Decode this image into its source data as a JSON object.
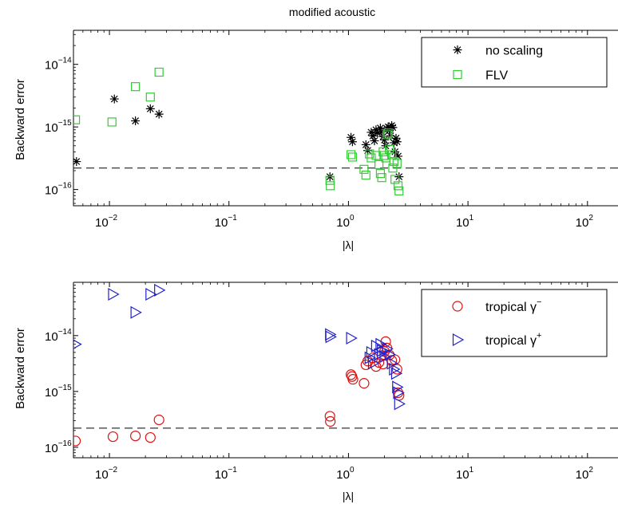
{
  "chart_data": [
    {
      "type": "scatter",
      "title": "modified acoustic",
      "xlabel": "|λ|",
      "ylabel": "Backward error",
      "x_scale": "log",
      "y_scale": "log",
      "xlim": [
        0.005,
        180
      ],
      "ylim": [
        5.5e-17,
        3.5e-14
      ],
      "x_ticks": [
        0.01,
        0.1,
        1,
        10,
        100
      ],
      "x_tick_labels": [
        {
          "base": "10",
          "exp": "−2"
        },
        {
          "base": "10",
          "exp": "−1"
        },
        {
          "base": "10",
          "exp": "0"
        },
        {
          "base": "10",
          "exp": "1"
        },
        {
          "base": "10",
          "exp": "2"
        }
      ],
      "y_ticks": [
        1e-16,
        1e-15,
        1e-14
      ],
      "y_tick_labels": [
        {
          "base": "10",
          "exp": "−16"
        },
        {
          "base": "10",
          "exp": "−15"
        },
        {
          "base": "10",
          "exp": "−14"
        }
      ],
      "reference_line": {
        "y": 2.2e-16,
        "style": "dashed"
      },
      "legend_position": "top-right",
      "grid": false,
      "series": [
        {
          "name": "no scaling",
          "marker": "asterisk",
          "color": "#000000",
          "points": [
            [
              0.0053,
              2.8e-16
            ],
            [
              0.011,
              2.8e-15
            ],
            [
              0.0165,
              1.25e-15
            ],
            [
              0.022,
              1.95e-15
            ],
            [
              0.026,
              1.6e-15
            ],
            [
              0.7,
              1.6e-16
            ],
            [
              1.05,
              6.8e-16
            ],
            [
              1.08,
              5.8e-16
            ],
            [
              1.4,
              5.2e-16
            ],
            [
              1.45,
              4.2e-16
            ],
            [
              1.55,
              8.2e-16
            ],
            [
              1.6,
              7.2e-16
            ],
            [
              1.65,
              6e-16
            ],
            [
              1.7,
              9e-16
            ],
            [
              1.75,
              8e-16
            ],
            [
              1.85,
              9.6e-16
            ],
            [
              1.9,
              8.4e-16
            ],
            [
              1.95,
              7e-16
            ],
            [
              2.0,
              6.2e-16
            ],
            [
              2.05,
              5e-16
            ],
            [
              2.1,
              9.4e-16
            ],
            [
              2.15,
              1e-15
            ],
            [
              2.2,
              8.8e-16
            ],
            [
              2.25,
              7.2e-16
            ],
            [
              2.3,
              1.05e-15
            ],
            [
              2.35,
              9.8e-16
            ],
            [
              2.4,
              5.6e-16
            ],
            [
              2.45,
              4e-16
            ],
            [
              2.5,
              6.6e-16
            ],
            [
              2.55,
              5.8e-16
            ],
            [
              2.6,
              3.4e-16
            ],
            [
              2.65,
              1.6e-16
            ]
          ]
        },
        {
          "name": "FLV",
          "marker": "square",
          "color": "#33cc33",
          "points": [
            [
              0.0052,
              1.3e-15
            ],
            [
              0.0105,
              1.2e-15
            ],
            [
              0.0165,
              4.4e-15
            ],
            [
              0.022,
              3e-15
            ],
            [
              0.026,
              7.5e-15
            ],
            [
              0.7,
              1.4e-16
            ],
            [
              0.705,
              1.15e-16
            ],
            [
              1.05,
              3.6e-16
            ],
            [
              1.08,
              3.3e-16
            ],
            [
              1.35,
              2.1e-16
            ],
            [
              1.4,
              1.7e-16
            ],
            [
              1.5,
              3.7e-16
            ],
            [
              1.55,
              3.2e-16
            ],
            [
              1.7,
              3.5e-16
            ],
            [
              1.8,
              2.5e-16
            ],
            [
              1.85,
              1.8e-16
            ],
            [
              1.9,
              1.55e-16
            ],
            [
              1.95,
              4e-16
            ],
            [
              2.0,
              3.5e-16
            ],
            [
              2.05,
              3.2e-16
            ],
            [
              2.1,
              7.5e-16
            ],
            [
              2.15,
              8e-16
            ],
            [
              2.2,
              4.4e-16
            ],
            [
              2.3,
              3.6e-16
            ],
            [
              2.35,
              2.2e-16
            ],
            [
              2.4,
              2.8e-16
            ],
            [
              2.45,
              1.45e-16
            ],
            [
              2.55,
              2.6e-16
            ],
            [
              2.6,
              1.15e-16
            ],
            [
              2.65,
              9.5e-17
            ]
          ]
        }
      ]
    },
    {
      "type": "scatter",
      "title": "",
      "xlabel": "|λ|",
      "ylabel": "Backward error",
      "x_scale": "log",
      "y_scale": "log",
      "xlim": [
        0.005,
        180
      ],
      "ylim": [
        6.5e-17,
        9e-14
      ],
      "x_ticks": [
        0.01,
        0.1,
        1,
        10,
        100
      ],
      "x_tick_labels": [
        {
          "base": "10",
          "exp": "−2"
        },
        {
          "base": "10",
          "exp": "−1"
        },
        {
          "base": "10",
          "exp": "0"
        },
        {
          "base": "10",
          "exp": "1"
        },
        {
          "base": "10",
          "exp": "2"
        }
      ],
      "y_ticks": [
        1e-16,
        1e-15,
        1e-14
      ],
      "y_tick_labels": [
        {
          "base": "10",
          "exp": "−16"
        },
        {
          "base": "10",
          "exp": "−15"
        },
        {
          "base": "10",
          "exp": "−14"
        }
      ],
      "reference_line": {
        "y": 2.2e-16,
        "style": "dashed"
      },
      "legend_position": "top-right",
      "grid": false,
      "series": [
        {
          "name": "tropical γ⁻",
          "legend_base": "tropical γ",
          "legend_sup": "−",
          "marker": "circle",
          "color": "#dd1111",
          "points": [
            [
              0.0052,
              1.3e-16
            ],
            [
              0.0107,
              1.55e-16
            ],
            [
              0.0165,
              1.6e-16
            ],
            [
              0.022,
              1.5e-16
            ],
            [
              0.026,
              3.1e-16
            ],
            [
              0.7,
              3.6e-16
            ],
            [
              0.705,
              2.9e-16
            ],
            [
              1.05,
              2e-15
            ],
            [
              1.07,
              1.85e-15
            ],
            [
              1.09,
              1.65e-15
            ],
            [
              1.35,
              1.4e-15
            ],
            [
              1.4,
              3e-15
            ],
            [
              1.45,
              3.5e-15
            ],
            [
              1.6,
              4e-15
            ],
            [
              1.7,
              2.8e-15
            ],
            [
              1.8,
              3.3e-15
            ],
            [
              1.9,
              4.4e-15
            ],
            [
              1.95,
              3.1e-15
            ],
            [
              2.0,
              5.2e-15
            ],
            [
              2.05,
              7.8e-15
            ],
            [
              2.1,
              6e-15
            ],
            [
              2.2,
              4.5e-15
            ],
            [
              2.3,
              3.6e-15
            ],
            [
              2.45,
              3.7e-15
            ],
            [
              2.55,
              2.5e-15
            ],
            [
              2.6,
              9.5e-16
            ],
            [
              2.65,
              8.5e-16
            ]
          ]
        },
        {
          "name": "tropical γ⁺",
          "legend_base": "tropical γ",
          "legend_sup": "+",
          "marker": "triangle-right",
          "color": "#2222cc",
          "points": [
            [
              0.0052,
              7e-15
            ],
            [
              0.0107,
              5.5e-14
            ],
            [
              0.0165,
              2.6e-14
            ],
            [
              0.022,
              5.5e-14
            ],
            [
              0.026,
              6.5e-14
            ],
            [
              0.7,
              1.05e-14
            ],
            [
              0.705,
              9.5e-15
            ],
            [
              1.05,
              9e-15
            ],
            [
              1.5,
              4e-15
            ],
            [
              1.55,
              5e-15
            ],
            [
              1.6,
              3.2e-15
            ],
            [
              1.7,
              6.5e-15
            ],
            [
              1.8,
              4.6e-15
            ],
            [
              1.85,
              7e-15
            ],
            [
              1.9,
              5.4e-15
            ],
            [
              2.0,
              4.2e-15
            ],
            [
              2.1,
              5.8e-15
            ],
            [
              2.2,
              4.6e-15
            ],
            [
              2.3,
              3.2e-15
            ],
            [
              2.4,
              2.5e-15
            ],
            [
              2.5,
              2.1e-15
            ],
            [
              2.55,
              1.2e-15
            ],
            [
              2.6,
              9.5e-16
            ],
            [
              2.65,
              6e-16
            ]
          ]
        }
      ]
    }
  ]
}
